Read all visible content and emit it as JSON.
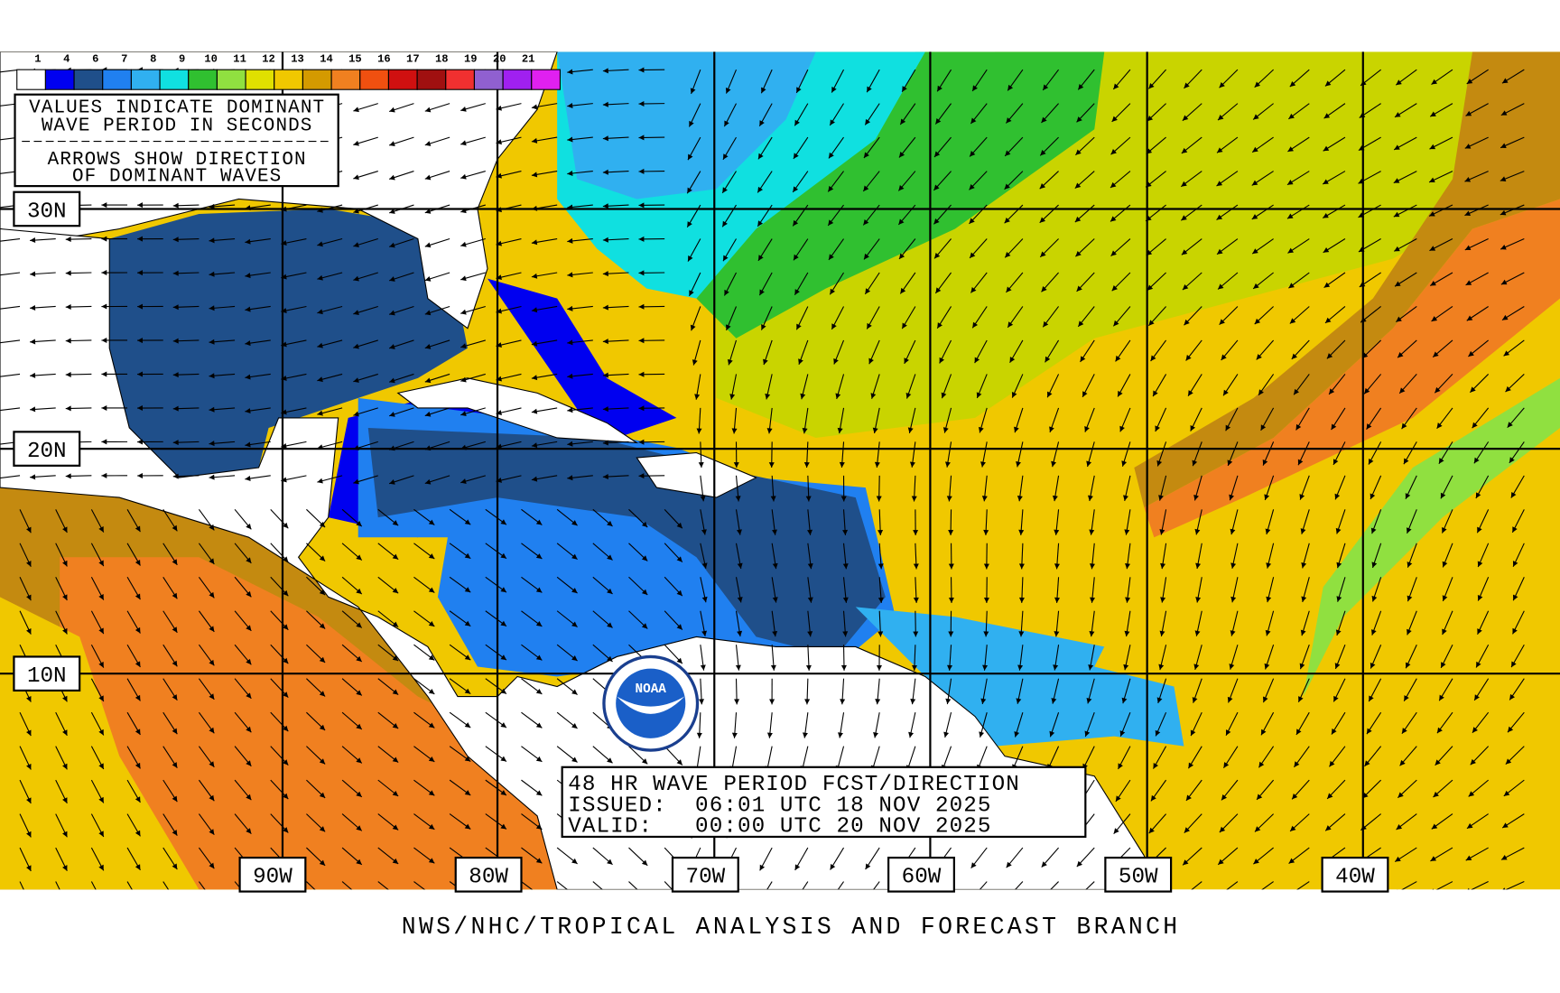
{
  "legend": {
    "labels": [
      "1",
      "4",
      "6",
      "7",
      "8",
      "9",
      "10",
      "11",
      "12",
      "13",
      "14",
      "15",
      "16",
      "17",
      "18",
      "19",
      "20",
      "21"
    ],
    "colors": [
      "#ffffff",
      "#0000f0",
      "#1f4f8a",
      "#2080f0",
      "#30b0f0",
      "#10e0e0",
      "#30c030",
      "#90e040",
      "#e0e000",
      "#f0c800",
      "#d49a00",
      "#f08020",
      "#f05010",
      "#d01010",
      "#a01010",
      "#f03030",
      "#9060d0",
      "#a020f0",
      "#e020f0"
    ]
  },
  "info_box": {
    "lines": [
      "VALUES INDICATE DOMINANT",
      "WAVE PERIOD IN SECONDS",
      "ARROWS SHOW DIRECTION",
      "OF DOMINANT WAVES"
    ]
  },
  "latitude_labels": [
    "30N",
    "20N",
    "10N"
  ],
  "longitude_labels": [
    "90W",
    "80W",
    "70W",
    "60W",
    "50W",
    "40W"
  ],
  "forecast_box": {
    "title": "48 HR WAVE PERIOD FCST/DIRECTION",
    "issued": "ISSUED:  06:01 UTC 18 NOV 2025",
    "valid": "VALID:   00:00 UTC 20 NOV 2025"
  },
  "logo": "NOAA",
  "footer": "NWS/NHC/TROPICAL ANALYSIS AND FORECAST BRANCH"
}
